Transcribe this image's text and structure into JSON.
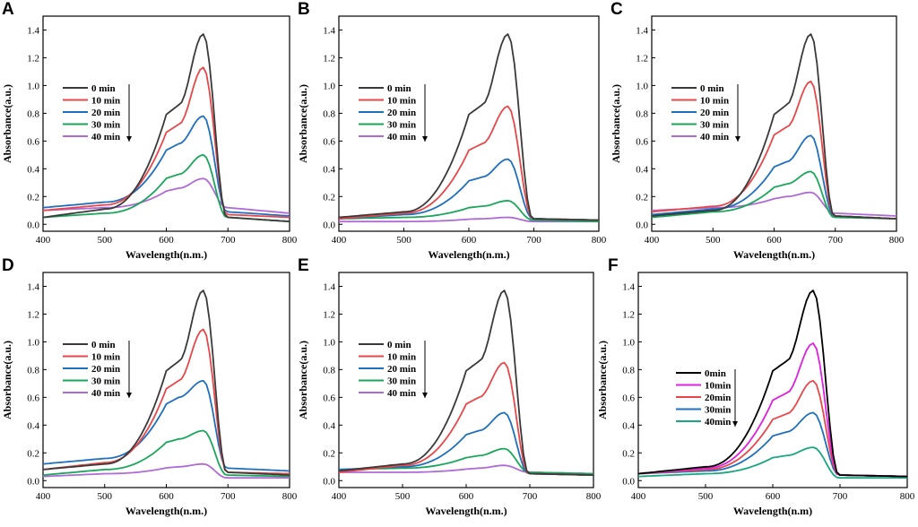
{
  "figure": {
    "series_names": [
      "0 min",
      "10 min",
      "20 min",
      "30 min",
      "40 min"
    ],
    "series_names_F": [
      "0min",
      "10min",
      "20min",
      "30min",
      "40min"
    ],
    "colors_default": [
      "#3a3a3a",
      "#e8474a",
      "#1f6fbf",
      "#1aa65a",
      "#b06ad6"
    ],
    "colors_F": [
      "#000000",
      "#e020e0",
      "#e8474a",
      "#1f6fbf",
      "#1aa680"
    ]
  },
  "chart_data": [
    {
      "panel": "A",
      "type": "line",
      "xlabel": "Wavelength(n.m.)",
      "ylabel": "Absorbance(a.u.)",
      "xlim": [
        400,
        800
      ],
      "ylim": [
        -0.05,
        1.5
      ],
      "xticks": [
        "400",
        "500",
        "600",
        "700",
        "800"
      ],
      "yticks": [
        "0.0",
        "0.2",
        "0.4",
        "0.6",
        "0.8",
        "1.0",
        "1.2",
        "1.4"
      ],
      "series": [
        {
          "name": "0 min",
          "values": [
            0.05,
            0.11,
            0.86,
            1.37,
            0.05,
            0.02
          ]
        },
        {
          "name": "10 min",
          "values": [
            0.1,
            0.14,
            0.72,
            1.13,
            0.07,
            0.05
          ]
        },
        {
          "name": "20 min",
          "values": [
            0.12,
            0.16,
            0.58,
            0.78,
            0.09,
            0.06
          ]
        },
        {
          "name": "30 min",
          "values": [
            0.05,
            0.08,
            0.36,
            0.5,
            0.05,
            0.02
          ]
        },
        {
          "name": "40 min",
          "values": [
            0.1,
            0.12,
            0.26,
            0.33,
            0.12,
            0.08
          ]
        }
      ]
    },
    {
      "panel": "B",
      "type": "line",
      "xlabel": "Wavelength(n.m.)",
      "ylabel": "Absorbance(a.u.)",
      "xlim": [
        400,
        800
      ],
      "ylim": [
        -0.05,
        1.5
      ],
      "xticks": [
        "400",
        "500",
        "600",
        "700",
        "800"
      ],
      "yticks": [
        "0.0",
        "0.2",
        "0.4",
        "0.6",
        "0.8",
        "1.0",
        "1.2",
        "1.4"
      ],
      "series": [
        {
          "name": "0 min",
          "values": [
            0.05,
            0.09,
            0.86,
            1.37,
            0.04,
            0.03
          ]
        },
        {
          "name": "10 min",
          "values": [
            0.04,
            0.08,
            0.58,
            0.85,
            0.04,
            0.03
          ]
        },
        {
          "name": "20 min",
          "values": [
            0.04,
            0.07,
            0.34,
            0.47,
            0.04,
            0.03
          ]
        },
        {
          "name": "30 min",
          "values": [
            0.04,
            0.05,
            0.13,
            0.17,
            0.03,
            0.02
          ]
        },
        {
          "name": "40 min",
          "values": [
            0.02,
            0.02,
            0.04,
            0.05,
            0.02,
            0.02
          ]
        }
      ]
    },
    {
      "panel": "C",
      "type": "line",
      "xlabel": "Wavelength(n.m.)",
      "ylabel": "Absorbance(a.u.)",
      "xlim": [
        400,
        800
      ],
      "ylim": [
        -0.05,
        1.5
      ],
      "xticks": [
        "400",
        "500",
        "600",
        "700",
        "800"
      ],
      "yticks": [
        "0.0",
        "0.2",
        "0.4",
        "0.6",
        "0.8",
        "1.0",
        "1.2",
        "1.4"
      ],
      "series": [
        {
          "name": "0 min",
          "values": [
            0.06,
            0.1,
            0.86,
            1.37,
            0.06,
            0.04
          ]
        },
        {
          "name": "10 min",
          "values": [
            0.09,
            0.13,
            0.7,
            1.03,
            0.06,
            0.04
          ]
        },
        {
          "name": "20 min",
          "values": [
            0.07,
            0.11,
            0.45,
            0.64,
            0.06,
            0.04
          ]
        },
        {
          "name": "30 min",
          "values": [
            0.05,
            0.09,
            0.29,
            0.38,
            0.05,
            0.04
          ]
        },
        {
          "name": "40 min",
          "values": [
            0.1,
            0.12,
            0.2,
            0.23,
            0.08,
            0.06
          ]
        }
      ]
    },
    {
      "panel": "D",
      "type": "line",
      "xlabel": "Wavelength(n.m.)",
      "ylabel": "Absorbance(a.u.)",
      "xlim": [
        400,
        800
      ],
      "ylim": [
        -0.05,
        1.5
      ],
      "xticks": [
        "400",
        "500",
        "600",
        "700",
        "800"
      ],
      "yticks": [
        "0.0",
        "0.2",
        "0.4",
        "0.6",
        "0.8",
        "1.0",
        "1.2",
        "1.4"
      ],
      "series": [
        {
          "name": "0 min",
          "values": [
            0.08,
            0.12,
            0.86,
            1.37,
            0.06,
            0.04
          ]
        },
        {
          "name": "10 min",
          "values": [
            0.08,
            0.13,
            0.72,
            1.09,
            0.06,
            0.05
          ]
        },
        {
          "name": "20 min",
          "values": [
            0.12,
            0.16,
            0.6,
            0.72,
            0.09,
            0.07
          ]
        },
        {
          "name": "30 min",
          "values": [
            0.04,
            0.08,
            0.3,
            0.36,
            0.04,
            0.03
          ]
        },
        {
          "name": "40 min",
          "values": [
            0.03,
            0.05,
            0.1,
            0.12,
            0.02,
            0.02
          ]
        }
      ]
    },
    {
      "panel": "E",
      "type": "line",
      "xlabel": "Wavelength(n.m.)",
      "ylabel": "Absorbance(a.u.)",
      "xlim": [
        400,
        800
      ],
      "ylim": [
        -0.05,
        1.5
      ],
      "xticks": [
        "400",
        "500",
        "600",
        "700",
        "800"
      ],
      "yticks": [
        "0.0",
        "0.2",
        "0.4",
        "0.6",
        "0.8",
        "1.0",
        "1.2",
        "1.4"
      ],
      "series": [
        {
          "name": "0 min",
          "values": [
            0.07,
            0.12,
            0.86,
            1.37,
            0.05,
            0.04
          ]
        },
        {
          "name": "10 min",
          "values": [
            0.06,
            0.11,
            0.6,
            0.85,
            0.05,
            0.04
          ]
        },
        {
          "name": "20 min",
          "values": [
            0.08,
            0.1,
            0.36,
            0.49,
            0.05,
            0.04
          ]
        },
        {
          "name": "30 min",
          "values": [
            0.08,
            0.09,
            0.18,
            0.23,
            0.06,
            0.05
          ]
        },
        {
          "name": "40 min",
          "values": [
            0.06,
            0.06,
            0.09,
            0.11,
            0.06,
            0.05
          ]
        }
      ]
    },
    {
      "panel": "F",
      "type": "line",
      "xlabel": "Wavelength(n.m)",
      "ylabel": "Absorbance(a.u.)",
      "xlim": [
        400,
        800
      ],
      "ylim": [
        -0.05,
        1.5
      ],
      "xticks": [
        "400",
        "500",
        "600",
        "700",
        "800"
      ],
      "yticks": [
        "0.0",
        "0.2",
        "0.4",
        "0.6",
        "0.8",
        "1.0",
        "1.2",
        "1.4"
      ],
      "series": [
        {
          "name": "0min",
          "values": [
            0.05,
            0.1,
            0.86,
            1.37,
            0.04,
            0.03
          ]
        },
        {
          "name": "10min",
          "values": [
            0.05,
            0.09,
            0.63,
            0.99,
            0.04,
            0.03
          ]
        },
        {
          "name": "20min",
          "values": [
            0.05,
            0.08,
            0.48,
            0.72,
            0.04,
            0.03
          ]
        },
        {
          "name": "30min",
          "values": [
            0.05,
            0.07,
            0.35,
            0.49,
            0.04,
            0.03
          ]
        },
        {
          "name": "40min",
          "values": [
            0.03,
            0.05,
            0.18,
            0.24,
            0.02,
            0.02
          ]
        }
      ]
    }
  ]
}
